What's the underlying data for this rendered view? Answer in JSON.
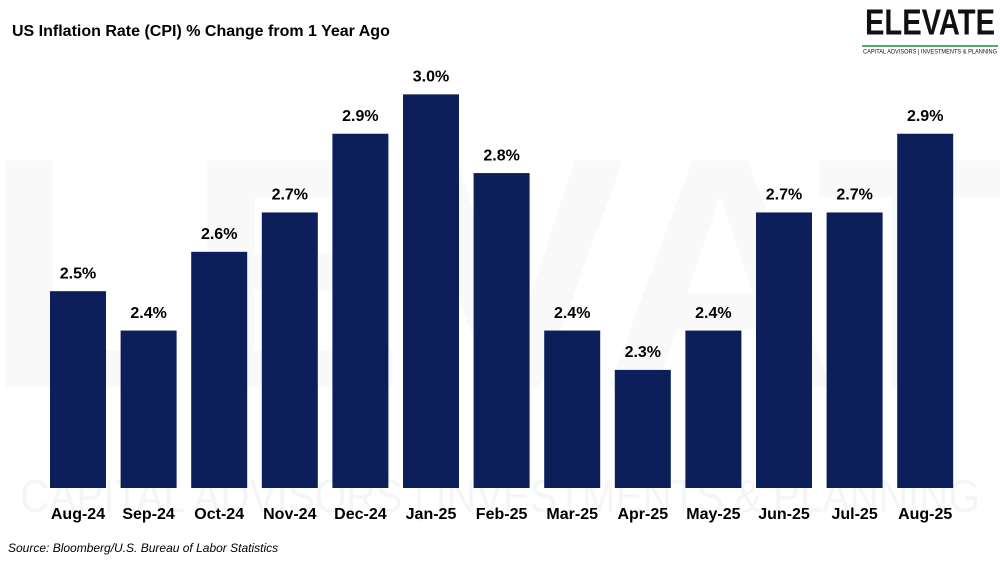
{
  "chart_data": {
    "type": "bar",
    "title": "US Inflation Rate (CPI) % Change from 1 Year Ago",
    "source": "Source: Bloomberg/U.S. Bureau of Labor Statistics",
    "logo": {
      "name": "ELEVATE",
      "tagline": "CAPITAL ADVISORS | INVESTMENTS & PLANNING"
    },
    "categories": [
      "Aug-24",
      "Sep-24",
      "Oct-24",
      "Nov-24",
      "Dec-24",
      "Jan-25",
      "Feb-25",
      "Mar-25",
      "Apr-25",
      "May-25",
      "Jun-25",
      "Jul-25",
      "Aug-25"
    ],
    "values": [
      2.5,
      2.4,
      2.6,
      2.7,
      2.9,
      3.0,
      2.8,
      2.4,
      2.3,
      2.4,
      2.7,
      2.7,
      2.9
    ],
    "value_labels": [
      "2.5%",
      "2.4%",
      "2.6%",
      "2.7%",
      "2.9%",
      "3.0%",
      "2.8%",
      "2.4%",
      "2.3%",
      "2.4%",
      "2.7%",
      "2.7%",
      "2.9%"
    ],
    "color": "#0c1f5b",
    "ylim": [
      2.0,
      3.1
    ]
  }
}
